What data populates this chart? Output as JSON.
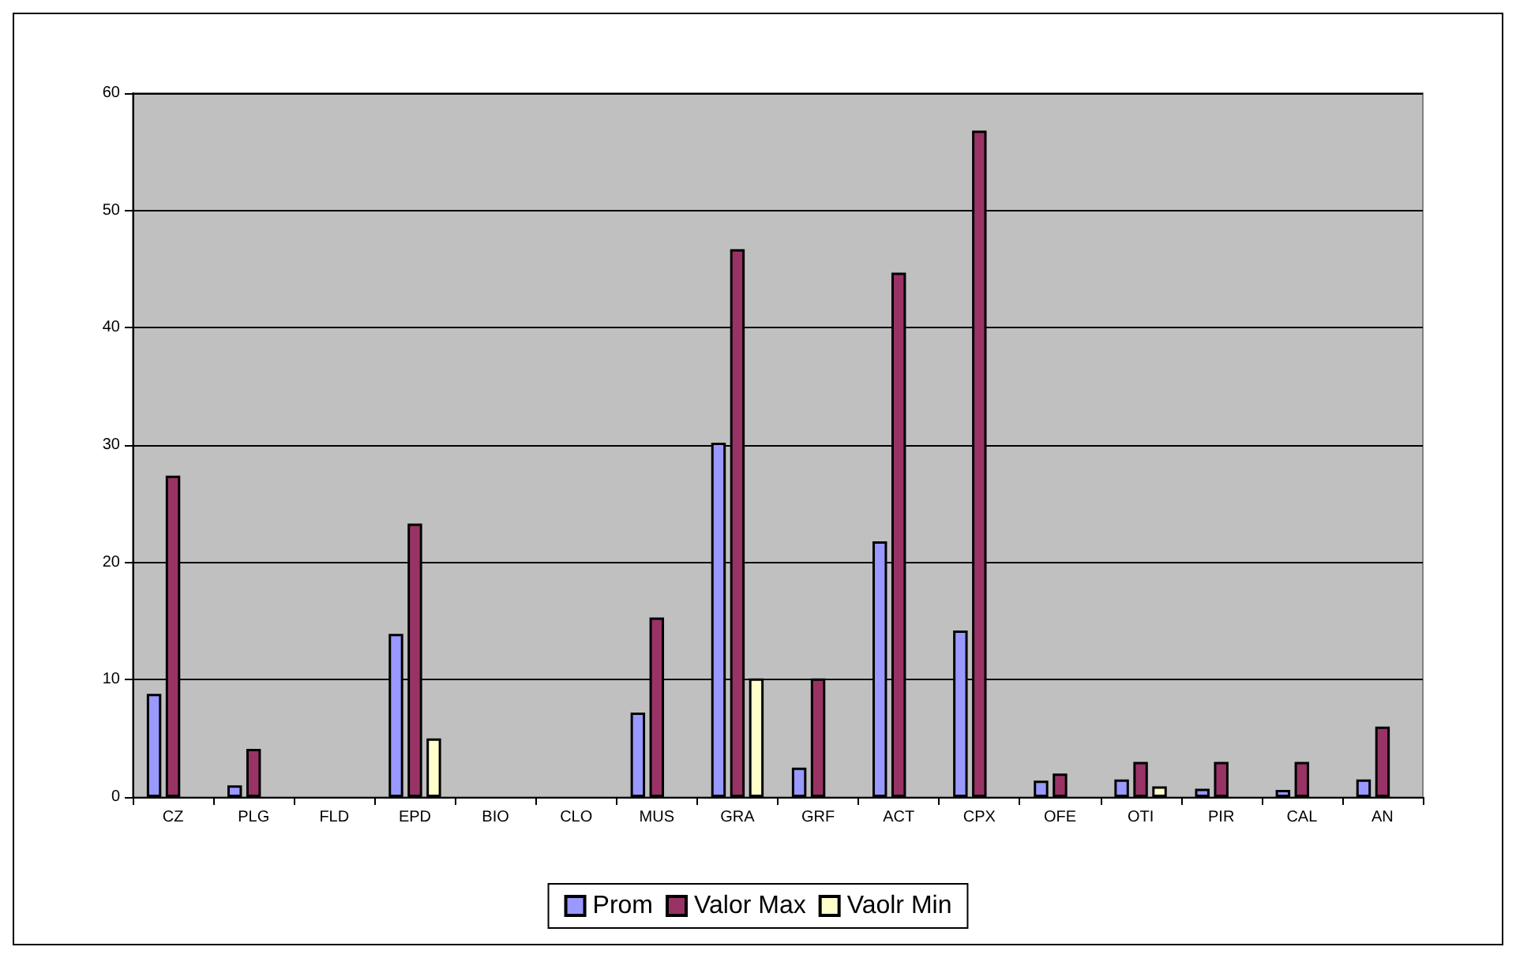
{
  "chart_data": {
    "type": "bar",
    "categories": [
      "CZ",
      "PLG",
      "FLD",
      "EPD",
      "BIO",
      "CLO",
      "MUS",
      "GRA",
      "GRF",
      "ACT",
      "CPX",
      "OFE",
      "OTI",
      "PIR",
      "CAL",
      "AN"
    ],
    "series": [
      {
        "name": "Prom",
        "color": "#9999ff",
        "values": [
          8.8,
          1.0,
          null,
          13.9,
          null,
          null,
          7.2,
          30.2,
          2.5,
          21.8,
          14.2,
          1.4,
          1.5,
          0.7,
          0.6,
          1.5
        ]
      },
      {
        "name": "Valor Max",
        "color": "#993366",
        "values": [
          27.4,
          4.1,
          null,
          23.3,
          null,
          null,
          15.3,
          46.7,
          10.1,
          44.7,
          56.8,
          2.0,
          3.0,
          3.0,
          3.0,
          6.0
        ]
      },
      {
        "name": "Vaolr Min",
        "color": "#ffffcc",
        "values": [
          0,
          0,
          null,
          5.0,
          null,
          null,
          0,
          10.1,
          0,
          0,
          0,
          0,
          0.9,
          0,
          0,
          0
        ]
      }
    ],
    "ylim": [
      0,
      60
    ],
    "yticks": [
      0,
      10,
      20,
      30,
      40,
      50,
      60
    ],
    "grid": "y",
    "legend": "bottom"
  }
}
